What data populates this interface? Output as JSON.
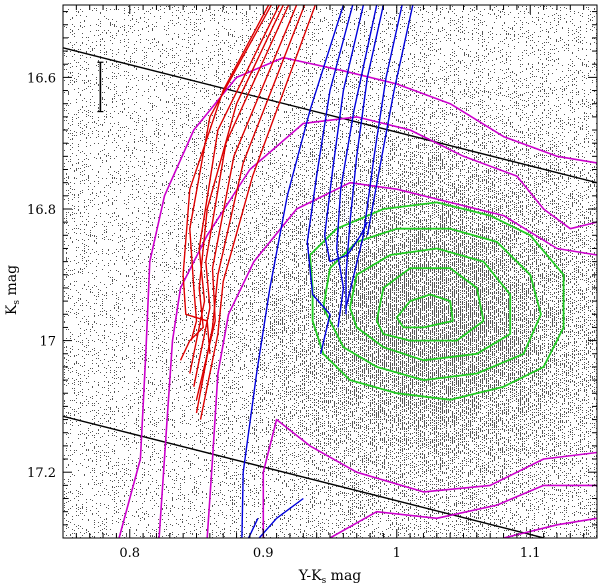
{
  "chart_data": {
    "type": "scatter",
    "title": "",
    "xlabel": "Y-Ks mag",
    "xlabel_main": "Y-K",
    "xlabel_sub": "s",
    "xlabel_unit": " mag",
    "ylabel": "Ks mag",
    "ylabel_main": "K",
    "ylabel_sub": "s",
    "ylabel_unit": " mag",
    "xlim": [
      0.75,
      1.15
    ],
    "ylim": [
      17.3,
      16.49
    ],
    "y_inverted": true,
    "grid": false,
    "x_ticks": [
      {
        "value": 0.8,
        "label": "0.8"
      },
      {
        "value": 0.9,
        "label": "0.9"
      },
      {
        "value": 1.0,
        "label": "1"
      },
      {
        "value": 1.1,
        "label": "1.1"
      }
    ],
    "y_ticks": [
      {
        "value": 16.6,
        "label": "16.6"
      },
      {
        "value": 16.8,
        "label": "16.8"
      },
      {
        "value": 17.0,
        "label": "17"
      },
      {
        "value": 17.2,
        "label": "17.2"
      }
    ],
    "colors": {
      "points": "#555555",
      "outer_contours": "#cc00cc",
      "inner_contours": "#22cc22",
      "red_tracks": "#dd0000",
      "blue_tracks": "#0000dd",
      "selection_lines": "#000000"
    },
    "scatter_density": {
      "center_x": 1.03,
      "center_y": 16.97,
      "sigma_x": 0.075,
      "sigma_y": 0.16,
      "background_level": 0.12
    },
    "error_bar": {
      "x": 0.778,
      "y_low": 16.577,
      "y_high": 16.652
    },
    "selection_lines": [
      {
        "name": "upper-bound",
        "points": [
          [
            0.75,
            16.555
          ],
          [
            1.15,
            16.76
          ]
        ]
      },
      {
        "name": "lower-bound",
        "points": [
          [
            0.75,
            17.115
          ],
          [
            1.12,
            17.305
          ]
        ]
      }
    ],
    "contours_outer": [
      {
        "level": 1,
        "points": [
          [
            0.792,
            17.3
          ],
          [
            0.808,
            17.18
          ],
          [
            0.812,
            17.02
          ],
          [
            0.815,
            16.88
          ],
          [
            0.826,
            16.78
          ],
          [
            0.848,
            16.68
          ],
          [
            0.88,
            16.6
          ],
          [
            0.915,
            16.57
          ],
          [
            0.96,
            16.59
          ],
          [
            1.0,
            16.61
          ],
          [
            1.04,
            16.64
          ],
          [
            1.08,
            16.69
          ],
          [
            1.12,
            16.72
          ],
          [
            1.15,
            16.73
          ]
        ]
      },
      {
        "level": 2,
        "points": [
          [
            0.822,
            17.3
          ],
          [
            0.828,
            17.12
          ],
          [
            0.832,
            17.0
          ],
          [
            0.838,
            16.92
          ],
          [
            0.858,
            16.84
          ],
          [
            0.89,
            16.74
          ],
          [
            0.93,
            16.67
          ],
          [
            0.97,
            16.66
          ],
          [
            1.01,
            16.68
          ],
          [
            1.05,
            16.72
          ],
          [
            1.09,
            16.75
          ],
          [
            1.11,
            16.8
          ],
          [
            1.13,
            16.83
          ],
          [
            1.15,
            16.82
          ]
        ]
      },
      {
        "level": 3,
        "points": [
          [
            0.858,
            17.3
          ],
          [
            0.862,
            17.18
          ],
          [
            0.866,
            17.05
          ],
          [
            0.874,
            16.96
          ],
          [
            0.893,
            16.88
          ],
          [
            0.925,
            16.8
          ],
          [
            0.965,
            16.76
          ],
          [
            1.0,
            16.77
          ],
          [
            1.04,
            16.79
          ],
          [
            1.08,
            16.81
          ],
          [
            1.12,
            16.86
          ],
          [
            1.15,
            16.87
          ]
        ]
      },
      {
        "level": 4,
        "points": [
          [
            0.9,
            17.3
          ],
          [
            0.9,
            17.2
          ],
          [
            0.91,
            17.12
          ],
          [
            0.935,
            17.16
          ],
          [
            0.97,
            17.2
          ],
          [
            1.02,
            17.23
          ],
          [
            1.07,
            17.22
          ],
          [
            1.11,
            17.18
          ],
          [
            1.15,
            17.17
          ]
        ]
      },
      {
        "level": 5,
        "points": [
          [
            0.95,
            17.3
          ],
          [
            0.985,
            17.26
          ],
          [
            1.03,
            17.27
          ],
          [
            1.075,
            17.25
          ],
          [
            1.11,
            17.22
          ],
          [
            1.15,
            17.22
          ]
        ]
      },
      {
        "level": 6,
        "points": [
          [
            1.08,
            17.3
          ],
          [
            1.12,
            17.28
          ],
          [
            1.15,
            17.27
          ]
        ]
      }
    ],
    "contours_inner": [
      {
        "level": 1,
        "points": [
          [
            0.937,
            16.92
          ],
          [
            0.935,
            16.87
          ],
          [
            0.955,
            16.83
          ],
          [
            0.99,
            16.8
          ],
          [
            1.03,
            16.79
          ],
          [
            1.07,
            16.81
          ],
          [
            1.1,
            16.84
          ],
          [
            1.125,
            16.9
          ],
          [
            1.125,
            16.98
          ],
          [
            1.11,
            17.04
          ],
          [
            1.08,
            17.07
          ],
          [
            1.04,
            17.09
          ],
          [
            1.0,
            17.08
          ],
          [
            0.965,
            17.06
          ],
          [
            0.945,
            17.02
          ],
          [
            0.937,
            16.97
          ],
          [
            0.937,
            16.92
          ]
        ]
      },
      {
        "level": 2,
        "points": [
          [
            0.945,
            16.95
          ],
          [
            0.95,
            16.89
          ],
          [
            0.97,
            16.85
          ],
          [
            1.0,
            16.83
          ],
          [
            1.04,
            16.83
          ],
          [
            1.075,
            16.85
          ],
          [
            1.1,
            16.9
          ],
          [
            1.108,
            16.96
          ],
          [
            1.095,
            17.02
          ],
          [
            1.06,
            17.05
          ],
          [
            1.02,
            17.06
          ],
          [
            0.985,
            17.04
          ],
          [
            0.96,
            17.01
          ],
          [
            0.945,
            16.95
          ]
        ]
      },
      {
        "level": 3,
        "points": [
          [
            0.965,
            16.95
          ],
          [
            0.97,
            16.9
          ],
          [
            0.995,
            16.87
          ],
          [
            1.03,
            16.86
          ],
          [
            1.065,
            16.88
          ],
          [
            1.085,
            16.93
          ],
          [
            1.085,
            16.99
          ],
          [
            1.06,
            17.02
          ],
          [
            1.02,
            17.03
          ],
          [
            0.99,
            17.01
          ],
          [
            0.97,
            16.98
          ],
          [
            0.965,
            16.95
          ]
        ]
      },
      {
        "level": 4,
        "points": [
          [
            0.985,
            16.97
          ],
          [
            0.99,
            16.92
          ],
          [
            1.01,
            16.89
          ],
          [
            1.04,
            16.89
          ],
          [
            1.06,
            16.92
          ],
          [
            1.065,
            16.97
          ],
          [
            1.045,
            17.0
          ],
          [
            1.01,
            17.0
          ],
          [
            0.99,
            16.99
          ],
          [
            0.985,
            16.97
          ]
        ]
      },
      {
        "level": 5,
        "points": [
          [
            1.0,
            16.965
          ],
          [
            1.01,
            16.94
          ],
          [
            1.025,
            16.93
          ],
          [
            1.04,
            16.94
          ],
          [
            1.042,
            16.97
          ],
          [
            1.02,
            16.98
          ],
          [
            1.005,
            16.98
          ],
          [
            1.0,
            16.965
          ]
        ]
      }
    ],
    "red_tracks": [
      {
        "points": [
          [
            0.906,
            16.49
          ],
          [
            0.86,
            16.66
          ],
          [
            0.845,
            16.83
          ],
          [
            0.848,
            16.92
          ],
          [
            0.85,
            16.97
          ],
          [
            0.846,
            17.0
          ]
        ]
      },
      {
        "points": [
          [
            0.912,
            16.49
          ],
          [
            0.866,
            16.68
          ],
          [
            0.852,
            16.86
          ],
          [
            0.856,
            16.94
          ],
          [
            0.845,
            17.05
          ]
        ]
      },
      {
        "points": [
          [
            0.919,
            16.49
          ],
          [
            0.872,
            16.7
          ],
          [
            0.857,
            16.88
          ],
          [
            0.86,
            16.95
          ],
          [
            0.848,
            17.07
          ]
        ]
      },
      {
        "points": [
          [
            0.925,
            16.49
          ],
          [
            0.878,
            16.72
          ],
          [
            0.862,
            16.89
          ],
          [
            0.864,
            16.97
          ],
          [
            0.85,
            17.09
          ]
        ]
      },
      {
        "points": [
          [
            0.931,
            16.49
          ],
          [
            0.885,
            16.73
          ],
          [
            0.866,
            16.9
          ],
          [
            0.862,
            16.98
          ],
          [
            0.85,
            17.11
          ]
        ]
      },
      {
        "points": [
          [
            0.939,
            16.49
          ],
          [
            0.892,
            16.75
          ],
          [
            0.87,
            16.91
          ],
          [
            0.866,
            16.99
          ],
          [
            0.853,
            17.12
          ]
        ]
      },
      {
        "points": [
          [
            0.904,
            16.49
          ],
          [
            0.87,
            16.62
          ],
          [
            0.845,
            16.77
          ],
          [
            0.84,
            16.9
          ],
          [
            0.842,
            16.96
          ],
          [
            0.858,
            16.97
          ],
          [
            0.86,
            17.02
          ]
        ]
      },
      {
        "points": [
          [
            0.915,
            16.49
          ],
          [
            0.88,
            16.64
          ],
          [
            0.858,
            16.8
          ],
          [
            0.852,
            16.92
          ],
          [
            0.855,
            16.98
          ],
          [
            0.845,
            17.0
          ],
          [
            0.838,
            17.03
          ]
        ]
      }
    ],
    "blue_tracks": [
      {
        "points": [
          [
            0.96,
            16.49
          ],
          [
            0.935,
            16.65
          ],
          [
            0.918,
            16.78
          ],
          [
            0.905,
            16.92
          ],
          [
            0.895,
            17.05
          ],
          [
            0.885,
            17.2
          ],
          [
            0.884,
            17.3
          ]
        ]
      },
      {
        "points": [
          [
            0.967,
            16.49
          ],
          [
            0.95,
            16.62
          ],
          [
            0.94,
            16.75
          ],
          [
            0.933,
            16.85
          ],
          [
            0.937,
            16.93
          ],
          [
            0.95,
            16.96
          ],
          [
            0.943,
            17.02
          ]
        ]
      },
      {
        "points": [
          [
            0.975,
            16.49
          ],
          [
            0.96,
            16.62
          ],
          [
            0.952,
            16.74
          ],
          [
            0.946,
            16.84
          ],
          [
            0.95,
            16.88
          ],
          [
            0.963,
            16.87
          ],
          [
            0.973,
            16.84
          ],
          [
            0.978,
            16.82
          ]
        ]
      },
      {
        "points": [
          [
            0.985,
            16.49
          ],
          [
            0.968,
            16.65
          ],
          [
            0.958,
            16.77
          ],
          [
            0.955,
            16.86
          ],
          [
            0.96,
            16.92
          ],
          [
            0.956,
            16.98
          ]
        ]
      },
      {
        "points": [
          [
            0.99,
            16.49
          ],
          [
            0.978,
            16.6
          ],
          [
            0.97,
            16.72
          ],
          [
            0.965,
            16.82
          ],
          [
            0.962,
            16.9
          ],
          [
            0.962,
            16.96
          ]
        ]
      },
      {
        "points": [
          [
            1.004,
            16.49
          ],
          [
            0.992,
            16.6
          ],
          [
            0.983,
            16.72
          ],
          [
            0.975,
            16.84
          ],
          [
            0.962,
            16.95
          ]
        ]
      },
      {
        "points": [
          [
            1.012,
            16.49
          ],
          [
            0.998,
            16.62
          ],
          [
            0.987,
            16.74
          ],
          [
            0.978,
            16.84
          ]
        ]
      },
      {
        "points": [
          [
            0.93,
            17.24
          ],
          [
            0.91,
            17.27
          ],
          [
            0.897,
            17.3
          ]
        ]
      },
      {
        "points": [
          [
            0.889,
            17.3
          ],
          [
            0.896,
            17.27
          ]
        ]
      }
    ]
  }
}
